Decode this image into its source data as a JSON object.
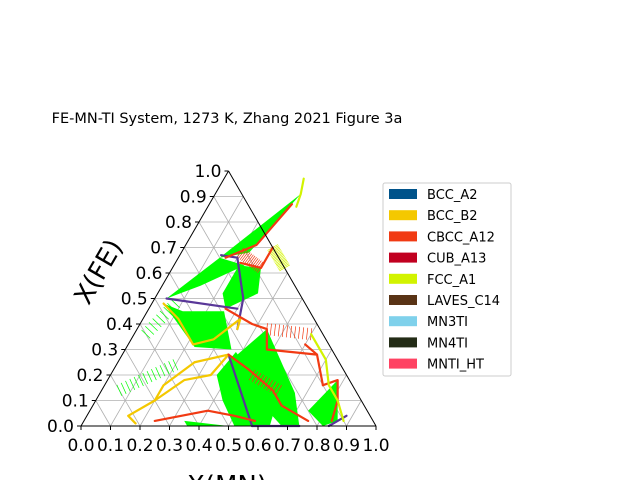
{
  "chart_data": {
    "type": "ternary",
    "title": "FE-MN-TI System, 1273 K, Zhang 2021 Figure 3a",
    "xlabel": "X(MN)",
    "ylabel": "X(FE)",
    "xlim": [
      0,
      1
    ],
    "ylim": [
      0,
      1
    ],
    "x_ticks": [
      "0.0",
      "0.1",
      "0.2",
      "0.3",
      "0.4",
      "0.5",
      "0.6",
      "0.7",
      "0.8",
      "0.9",
      "1.0"
    ],
    "y_ticks": [
      "0.0",
      "0.1",
      "0.2",
      "0.3",
      "0.4",
      "0.5",
      "0.6",
      "0.7",
      "0.8",
      "0.9",
      "1.0"
    ],
    "grid": true,
    "legend_position": "right",
    "legend": [
      {
        "name": "BCC_A2",
        "color": "#00538a"
      },
      {
        "name": "BCC_B2",
        "color": "#f4c800"
      },
      {
        "name": "CBCC_A12",
        "color": "#f13a13"
      },
      {
        "name": "CUB_A13",
        "color": "#c10020"
      },
      {
        "name": "FCC_A1",
        "color": "#d2f300"
      },
      {
        "name": "LAVES_C14",
        "color": "#593315"
      },
      {
        "name": "MN3TI",
        "color": "#7fd1eb"
      },
      {
        "name": "MN4TI",
        "color": "#232c16"
      },
      {
        "name": "MNTI_HT",
        "color": "#ff4262"
      }
    ],
    "three_phase_color": "#00ff00",
    "regions": [
      {
        "kind": "three-phase",
        "pts": [
          [
            0.29,
            0.91
          ],
          [
            0.14,
            0.66
          ],
          [
            0.23,
            0.68
          ]
        ]
      },
      {
        "kind": "three-phase",
        "pts": [
          [
            0.14,
            0.66
          ],
          [
            0.04,
            0.5
          ],
          [
            0.13,
            0.55
          ],
          [
            0.24,
            0.63
          ]
        ]
      },
      {
        "kind": "three-phase",
        "pts": [
          [
            0.22,
            0.63
          ],
          [
            0.3,
            0.62
          ],
          [
            0.34,
            0.52
          ],
          [
            0.26,
            0.46
          ],
          [
            0.22,
            0.52
          ]
        ]
      },
      {
        "kind": "three-phase",
        "pts": [
          [
            0.04,
            0.48
          ],
          [
            0.23,
            0.31
          ],
          [
            0.36,
            0.3
          ],
          [
            0.26,
            0.45
          ],
          [
            0.12,
            0.45
          ]
        ]
      },
      {
        "kind": "three-phase",
        "pts": [
          [
            0.38,
            0.29
          ],
          [
            0.62,
            0.08
          ],
          [
            0.64,
            0.0
          ],
          [
            0.52,
            0.0
          ],
          [
            0.43,
            0.1
          ],
          [
            0.36,
            0.2
          ]
        ]
      },
      {
        "kind": "three-phase",
        "pts": [
          [
            0.44,
            0.38
          ],
          [
            0.66,
            0.13
          ],
          [
            0.74,
            0.0
          ],
          [
            0.68,
            0.0
          ],
          [
            0.5,
            0.14
          ],
          [
            0.38,
            0.26
          ]
        ]
      },
      {
        "kind": "three-phase",
        "pts": [
          [
            0.34,
            0.02
          ],
          [
            0.5,
            0.0
          ],
          [
            0.36,
            0.0
          ]
        ]
      },
      {
        "kind": "three-phase",
        "pts": [
          [
            0.78,
            0.18
          ],
          [
            0.86,
            0.02
          ],
          [
            0.82,
            0.0
          ],
          [
            0.74,
            0.06
          ]
        ]
      }
    ],
    "phase_lines": [
      {
        "phase": "LAVES_C14",
        "color": "#593798",
        "pts": [
          [
            0.14,
            0.67
          ],
          [
            0.2,
            0.66
          ],
          [
            0.3,
            0.5
          ],
          [
            0.34,
            0.38
          ]
        ]
      },
      {
        "phase": "LAVES_C14",
        "color": "#593798",
        "pts": [
          [
            0.04,
            0.5
          ],
          [
            0.3,
            0.46
          ]
        ]
      },
      {
        "phase": "LAVES_C14",
        "color": "#593798",
        "pts": [
          [
            0.36,
            0.28
          ],
          [
            0.58,
            0.0
          ]
        ]
      },
      {
        "phase": "LAVES_C14",
        "color": "#593798",
        "pts": [
          [
            0.58,
            0.0
          ],
          [
            0.74,
            0.0
          ]
        ]
      },
      {
        "phase": "LAVES_C14",
        "color": "#593798",
        "pts": [
          [
            0.84,
            0.0
          ],
          [
            0.88,
            0.04
          ]
        ]
      },
      {
        "phase": "BCC_B2",
        "color": "#f4c800",
        "pts": [
          [
            0.04,
            0.48
          ],
          [
            0.12,
            0.42
          ],
          [
            0.22,
            0.32
          ],
          [
            0.28,
            0.34
          ],
          [
            0.33,
            0.42
          ],
          [
            0.34,
            0.38
          ]
        ]
      },
      {
        "phase": "BCC_B2",
        "color": "#f4c800",
        "pts": [
          [
            0.26,
            0.25
          ],
          [
            0.36,
            0.28
          ],
          [
            0.34,
            0.2
          ],
          [
            0.26,
            0.18
          ],
          [
            0.2,
            0.1
          ],
          [
            0.14,
            0.04
          ],
          [
            0.18,
            0.01
          ]
        ]
      },
      {
        "phase": "BCC_B2",
        "color": "#f4c800",
        "pts": [
          [
            0.26,
            0.25
          ],
          [
            0.2,
            0.16
          ],
          [
            0.2,
            0.1
          ]
        ]
      },
      {
        "phase": "CBCC_A12",
        "color": "#f13a13",
        "pts": [
          [
            0.16,
            0.66
          ],
          [
            0.24,
            0.71
          ],
          [
            0.28,
            0.87
          ]
        ]
      },
      {
        "phase": "CBCC_A12",
        "color": "#f13a13",
        "pts": [
          [
            0.22,
            0.64
          ],
          [
            0.3,
            0.62
          ],
          [
            0.3,
            0.7
          ]
        ]
      },
      {
        "phase": "CBCC_A12",
        "color": "#f13a13",
        "pts": [
          [
            0.26,
            0.46
          ],
          [
            0.38,
            0.4
          ],
          [
            0.44,
            0.38
          ],
          [
            0.48,
            0.3
          ],
          [
            0.66,
            0.28
          ],
          [
            0.74,
            0.16
          ]
        ]
      },
      {
        "phase": "CBCC_A12",
        "color": "#f13a13",
        "pts": [
          [
            0.36,
            0.28
          ],
          [
            0.46,
            0.22
          ],
          [
            0.58,
            0.14
          ],
          [
            0.64,
            0.08
          ],
          [
            0.76,
            0.02
          ]
        ]
      },
      {
        "phase": "CBCC_A12",
        "color": "#f13a13",
        "pts": [
          [
            0.74,
            0.16
          ],
          [
            0.78,
            0.18
          ],
          [
            0.82,
            0.1
          ],
          [
            0.84,
            0.02
          ]
        ]
      },
      {
        "phase": "CBCC_A12",
        "color": "#f13a13",
        "pts": [
          [
            0.24,
            0.02
          ],
          [
            0.4,
            0.06
          ],
          [
            0.5,
            0.04
          ],
          [
            0.58,
            0.02
          ]
        ]
      },
      {
        "phase": "CBCC_A12",
        "color": "#f13a13",
        "pts": [
          [
            0.6,
            0.32
          ],
          [
            0.66,
            0.28
          ]
        ]
      },
      {
        "phase": "FCC_A1",
        "color": "#d2f300",
        "pts": [
          [
            0.6,
            0.36
          ],
          [
            0.7,
            0.26
          ],
          [
            0.76,
            0.16
          ],
          [
            0.82,
            0.1
          ],
          [
            0.88,
            0.02
          ]
        ]
      },
      {
        "phase": "FCC_A1",
        "color": "#d2f300",
        "pts": [
          [
            0.27,
            0.97
          ],
          [
            0.29,
            0.91
          ],
          [
            0.3,
            0.86
          ]
        ]
      }
    ],
    "tie_lines": [
      {
        "from": [
          0.3,
          0.7
        ],
        "to": [
          0.38,
          0.62
        ],
        "count": 18,
        "color": "#d2f300"
      },
      {
        "from": [
          0.44,
          0.38
        ],
        "to": [
          0.6,
          0.36
        ],
        "count": 12,
        "color": "#f13a13"
      },
      {
        "from": [
          0.08,
          0.48
        ],
        "to": [
          0.04,
          0.36
        ],
        "count": 9,
        "color": "#00ff00"
      },
      {
        "from": [
          0.2,
          0.24
        ],
        "to": [
          0.06,
          0.14
        ],
        "count": 14,
        "color": "#00ff00"
      },
      {
        "from": [
          0.48,
          0.2
        ],
        "to": [
          0.6,
          0.14
        ],
        "count": 10,
        "color": "#f13a13"
      },
      {
        "from": [
          0.2,
          0.68
        ],
        "to": [
          0.3,
          0.62
        ],
        "count": 14,
        "color": "#f13a13"
      }
    ]
  }
}
